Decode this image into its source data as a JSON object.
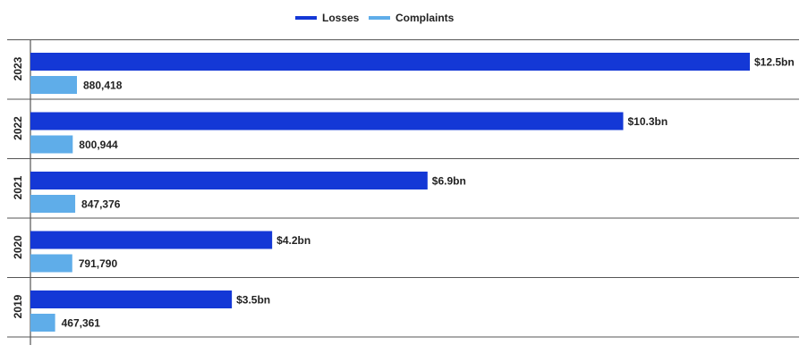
{
  "chart_data": {
    "type": "bar",
    "orientation": "horizontal",
    "categories": [
      "2023",
      "2022",
      "2021",
      "2020",
      "2019"
    ],
    "series": [
      {
        "name": "Losses",
        "color": "#1438d6",
        "values": [
          12.5,
          10.3,
          6.9,
          4.2,
          3.5
        ],
        "labels": [
          "$12.5bn",
          "$10.3bn",
          "$6.9bn",
          "$4.2bn",
          "$3.5bn"
        ]
      },
      {
        "name": "Complaints",
        "color": "#5fade9",
        "values": [
          880418,
          800944,
          847376,
          791790,
          467361
        ],
        "labels": [
          "880,418",
          "800,944",
          "847,376",
          "791,790",
          "467,361"
        ]
      }
    ],
    "legend_position": "top-center",
    "grid": false,
    "losses_axis_max": 12.5,
    "complaints_axis_max": 10000000,
    "title": "",
    "xlabel": "",
    "ylabel": ""
  }
}
